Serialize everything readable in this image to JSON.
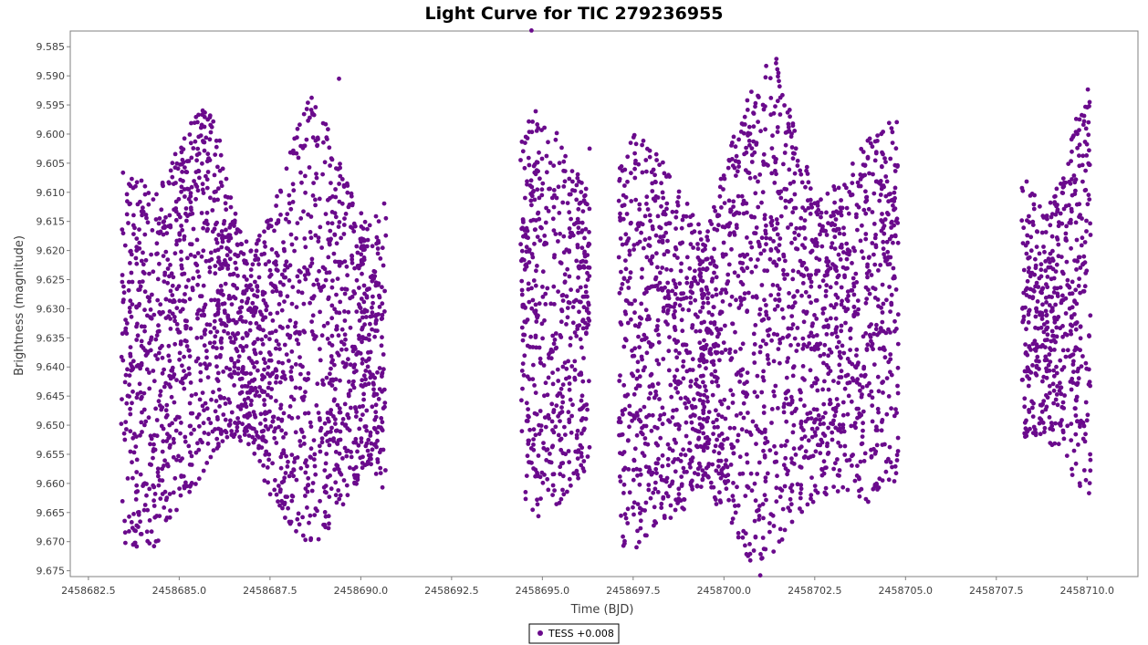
{
  "chart_data": {
    "type": "scatter",
    "title": "Light Curve for TIC 279236955",
    "xlabel": "Time (BJD)",
    "ylabel": "Brightness (magnitude)",
    "xlim": [
      2458682.0,
      2458711.4
    ],
    "ylim": [
      9.676,
      9.5823
    ],
    "y_inverted": true,
    "x_ticks": [
      2458682.5,
      2458685.0,
      2458687.5,
      2458690.0,
      2458692.5,
      2458695.0,
      2458697.5,
      2458700.0,
      2458702.5,
      2458705.0,
      2458707.5,
      2458710.0
    ],
    "x_tick_labels": [
      "2458682.5",
      "2458685.0",
      "2458687.5",
      "2458690.0",
      "2458692.5",
      "2458695.0",
      "2458697.5",
      "2458700.0",
      "2458702.5",
      "2458705.0",
      "2458707.5",
      "2458710.0"
    ],
    "y_ticks": [
      9.585,
      9.59,
      9.595,
      9.6,
      9.605,
      9.61,
      9.615,
      9.62,
      9.625,
      9.63,
      9.635,
      9.64,
      9.645,
      9.65,
      9.655,
      9.66,
      9.665,
      9.67,
      9.675
    ],
    "y_tick_labels": [
      "9.585",
      "9.590",
      "9.595",
      "9.600",
      "9.605",
      "9.610",
      "9.615",
      "9.620",
      "9.625",
      "9.630",
      "9.635",
      "9.640",
      "9.645",
      "9.650",
      "9.655",
      "9.660",
      "9.665",
      "9.670",
      "9.675"
    ],
    "grid": false,
    "legend_position": "bottom-center",
    "series": [
      {
        "name": "TESS +0.008",
        "color": "#6a0a8c",
        "marker": "circle",
        "segments": [
          {
            "x_start": 2458683.4,
            "x_end": 2458690.7
          },
          {
            "x_start": 2458694.4,
            "x_end": 2458696.3
          },
          {
            "x_start": 2458697.1,
            "x_end": 2458704.8
          },
          {
            "x_start": 2458708.2,
            "x_end": 2458710.1
          }
        ],
        "envelope": [
          {
            "x": 2458683.4,
            "low": 9.603,
            "high": 9.671
          },
          {
            "x": 2458684.3,
            "low": 9.611,
            "high": 9.671
          },
          {
            "x": 2458685.0,
            "low": 9.601,
            "high": 9.665
          },
          {
            "x": 2458685.4,
            "low": 9.595,
            "high": 9.661
          },
          {
            "x": 2458686.0,
            "low": 9.597,
            "high": 9.655
          },
          {
            "x": 2458686.5,
            "low": 9.613,
            "high": 9.652
          },
          {
            "x": 2458687.0,
            "low": 9.62,
            "high": 9.654
          },
          {
            "x": 2458687.5,
            "low": 9.614,
            "high": 9.662
          },
          {
            "x": 2458688.0,
            "low": 9.604,
            "high": 9.668
          },
          {
            "x": 2458688.5,
            "low": 9.591,
            "high": 9.671
          },
          {
            "x": 2458689.0,
            "low": 9.597,
            "high": 9.669
          },
          {
            "x": 2458689.6,
            "low": 9.608,
            "high": 9.663
          },
          {
            "x": 2458690.2,
            "low": 9.616,
            "high": 9.657
          },
          {
            "x": 2458690.7,
            "low": 9.611,
            "high": 9.662
          },
          {
            "x": 2458694.4,
            "low": 9.6,
            "high": 9.662
          },
          {
            "x": 2458694.8,
            "low": 9.596,
            "high": 9.666
          },
          {
            "x": 2458695.2,
            "low": 9.597,
            "high": 9.665
          },
          {
            "x": 2458695.7,
            "low": 9.603,
            "high": 9.662
          },
          {
            "x": 2458696.3,
            "low": 9.61,
            "high": 9.657
          },
          {
            "x": 2458697.1,
            "low": 9.6,
            "high": 9.672
          },
          {
            "x": 2458697.7,
            "low": 9.6,
            "high": 9.672
          },
          {
            "x": 2458698.3,
            "low": 9.604,
            "high": 9.668
          },
          {
            "x": 2458699.0,
            "low": 9.612,
            "high": 9.664
          },
          {
            "x": 2458699.5,
            "low": 9.618,
            "high": 9.66
          },
          {
            "x": 2458700.0,
            "low": 9.605,
            "high": 9.668
          },
          {
            "x": 2458700.5,
            "low": 9.596,
            "high": 9.672
          },
          {
            "x": 2458701.0,
            "low": 9.588,
            "high": 9.676
          },
          {
            "x": 2458701.4,
            "low": 9.586,
            "high": 9.672
          },
          {
            "x": 2458702.0,
            "low": 9.6,
            "high": 9.667
          },
          {
            "x": 2458702.6,
            "low": 9.611,
            "high": 9.662
          },
          {
            "x": 2458703.3,
            "low": 9.607,
            "high": 9.662
          },
          {
            "x": 2458704.0,
            "low": 9.6,
            "high": 9.664
          },
          {
            "x": 2458704.8,
            "low": 9.597,
            "high": 9.659
          },
          {
            "x": 2458708.2,
            "low": 9.606,
            "high": 9.652
          },
          {
            "x": 2458708.8,
            "low": 9.613,
            "high": 9.652
          },
          {
            "x": 2458709.3,
            "low": 9.608,
            "high": 9.655
          },
          {
            "x": 2458709.7,
            "low": 9.597,
            "high": 9.66
          },
          {
            "x": 2458710.1,
            "low": 9.591,
            "high": 9.662
          }
        ],
        "outliers": [
          {
            "x": 2458694.7,
            "y": 9.5822
          },
          {
            "x": 2458689.4,
            "y": 9.5905
          },
          {
            "x": 2458696.3,
            "y": 9.6025
          },
          {
            "x": 2458699.3,
            "y": 9.6155
          },
          {
            "x": 2458701.0,
            "y": 9.6758
          }
        ]
      }
    ]
  }
}
